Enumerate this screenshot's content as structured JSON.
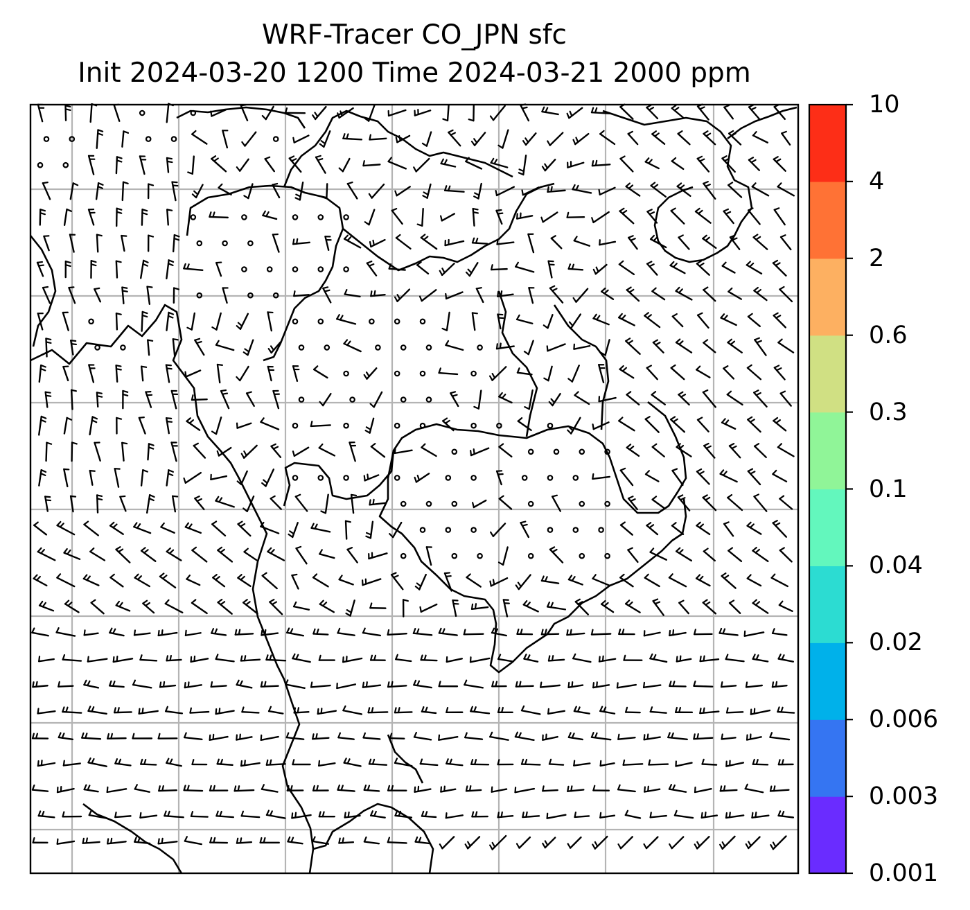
{
  "title": {
    "line1": "WRF-Tracer CO_JPN sfc",
    "line2": "Init 2024-03-20 1200 Time 2024-03-21 2000 ppm"
  },
  "colorbar": {
    "ticks": [
      "0.001",
      "0.003",
      "0.006",
      "0.02",
      "0.04",
      "0.1",
      "0.3",
      "0.6",
      "2",
      "4",
      "10"
    ],
    "colors": [
      "#6a2cff",
      "#3575f2",
      "#00b1ea",
      "#2cdcd2",
      "#63f7bd",
      "#90f598",
      "#d0e083",
      "#fdb061",
      "#ff7235",
      "#fd2e17"
    ]
  },
  "map": {
    "gridlines": true,
    "grid_color": "#b4b4b4",
    "coastline_color": "#000000",
    "wind_barbs": true
  }
}
